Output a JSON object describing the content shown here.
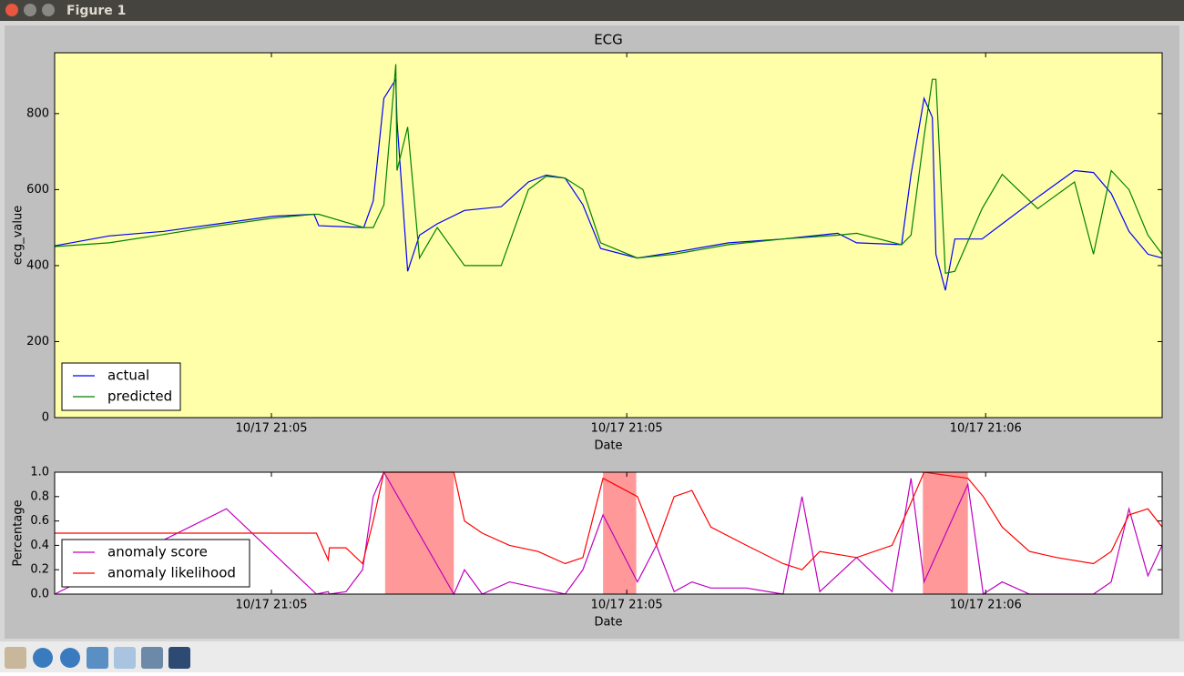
{
  "window": {
    "title": "Figure 1"
  },
  "chart_data": [
    {
      "type": "line",
      "title": "ECG",
      "xlabel": "Date",
      "ylabel": "ecg_value",
      "facecolor": "#ffffaa",
      "legend": "lower left",
      "xlim": [
        0,
        93.5
      ],
      "xticks": [
        {
          "value": 18.3,
          "label": "10/17 21:05"
        },
        {
          "value": 48.3,
          "label": "10/17 21:05"
        },
        {
          "value": 78.6,
          "label": "10/17 21:06"
        }
      ],
      "ylim": [
        0,
        960
      ],
      "yticks": [
        0,
        200,
        400,
        600,
        800
      ],
      "x": [
        0,
        4.6,
        9.2,
        13.8,
        18.5,
        21.9,
        22.3,
        26.1,
        26.9,
        27.8,
        28.8,
        28.9,
        29.8,
        30.8,
        32.3,
        34.6,
        37.7,
        40.0,
        41.5,
        43.1,
        44.6,
        46.1,
        49.2,
        52.3,
        56.9,
        61.5,
        66.1,
        67.7,
        71.5,
        72.3,
        73.4,
        74.1,
        74.4,
        75.2,
        76.0,
        78.3,
        80.0,
        83.0,
        86.1,
        87.7,
        89.2,
        90.7,
        92.3,
        93.5
      ],
      "series": [
        {
          "name": "actual",
          "color": "#0000ff",
          "values": [
            452,
            478,
            490,
            510,
            530,
            535,
            505,
            500,
            570,
            840,
            890,
            780,
            385,
            480,
            510,
            545,
            555,
            620,
            638,
            630,
            560,
            445,
            420,
            435,
            460,
            470,
            485,
            460,
            455,
            640,
            840,
            790,
            430,
            335,
            470,
            470,
            510,
            580,
            650,
            645,
            590,
            490,
            430,
            420
          ]
        },
        {
          "name": "predicted",
          "color": "#008000",
          "values": [
            450,
            460,
            482,
            505,
            525,
            535,
            535,
            500,
            500,
            560,
            930,
            650,
            765,
            420,
            500,
            400,
            400,
            600,
            635,
            630,
            600,
            460,
            420,
            430,
            455,
            470,
            480,
            485,
            455,
            480,
            740,
            890,
            890,
            380,
            385,
            550,
            640,
            550,
            620,
            430,
            650,
            600,
            480,
            430
          ]
        }
      ]
    },
    {
      "type": "line",
      "xlabel": "Date",
      "ylabel": "Percentage",
      "facecolor": "#ffffff",
      "legend": "lower left",
      "xlim": [
        0,
        93.5
      ],
      "xticks": [
        {
          "value": 18.3,
          "label": "10/17 21:05"
        },
        {
          "value": 48.3,
          "label": "10/17 21:05"
        },
        {
          "value": 78.6,
          "label": "10/17 21:06"
        }
      ],
      "ylim": [
        0,
        1
      ],
      "yticks": [
        {
          "value": 0,
          "label": "0.0"
        },
        0.2,
        0.4,
        0.6,
        0.8,
        {
          "value": 1,
          "label": "1.0"
        }
      ],
      "spans": [
        [
          27.9,
          33.7
        ],
        [
          46.3,
          49.1
        ],
        [
          73.3,
          77.1
        ]
      ],
      "span_color": "#ff9999",
      "x": [
        0,
        14.5,
        22.1,
        23.1,
        23.2,
        24.6,
        26.0,
        26.9,
        27.8,
        33.7,
        34.6,
        36.1,
        38.4,
        40.8,
        43.1,
        44.6,
        46.3,
        49.2,
        50.8,
        52.3,
        53.8,
        55.4,
        58.4,
        61.5,
        63.1,
        64.6,
        67.7,
        70.7,
        72.3,
        73.4,
        77.1,
        78.4,
        80.0,
        82.3,
        84.6,
        87.7,
        89.2,
        90.7,
        92.3,
        93.5
      ],
      "series": [
        {
          "name": "anomaly score",
          "color": "#bf00bf",
          "values": [
            0,
            0.7,
            0,
            0.02,
            0,
            0.02,
            0.2,
            0.8,
            1.0,
            0,
            0.2,
            0,
            0.1,
            0.05,
            0,
            0.2,
            0.65,
            0.1,
            0.4,
            0.02,
            0.1,
            0.05,
            0.05,
            0,
            0.8,
            0.02,
            0.3,
            0.02,
            0.95,
            0.1,
            0.9,
            0,
            0.1,
            0,
            0,
            0,
            0.1,
            0.7,
            0.15,
            0.4
          ]
        },
        {
          "name": "anomaly likelihood",
          "color": "#ff0000",
          "values": [
            0.5,
            0.5,
            0.5,
            0.28,
            0.38,
            0.38,
            0.25,
            0.6,
            1.0,
            1.0,
            0.6,
            0.5,
            0.4,
            0.35,
            0.25,
            0.3,
            0.95,
            0.8,
            0.4,
            0.8,
            0.85,
            0.55,
            0.4,
            0.25,
            0.2,
            0.35,
            0.3,
            0.4,
            0.75,
            1.0,
            0.95,
            0.8,
            0.55,
            0.35,
            0.3,
            0.25,
            0.35,
            0.65,
            0.7,
            0.55
          ]
        }
      ]
    }
  ]
}
